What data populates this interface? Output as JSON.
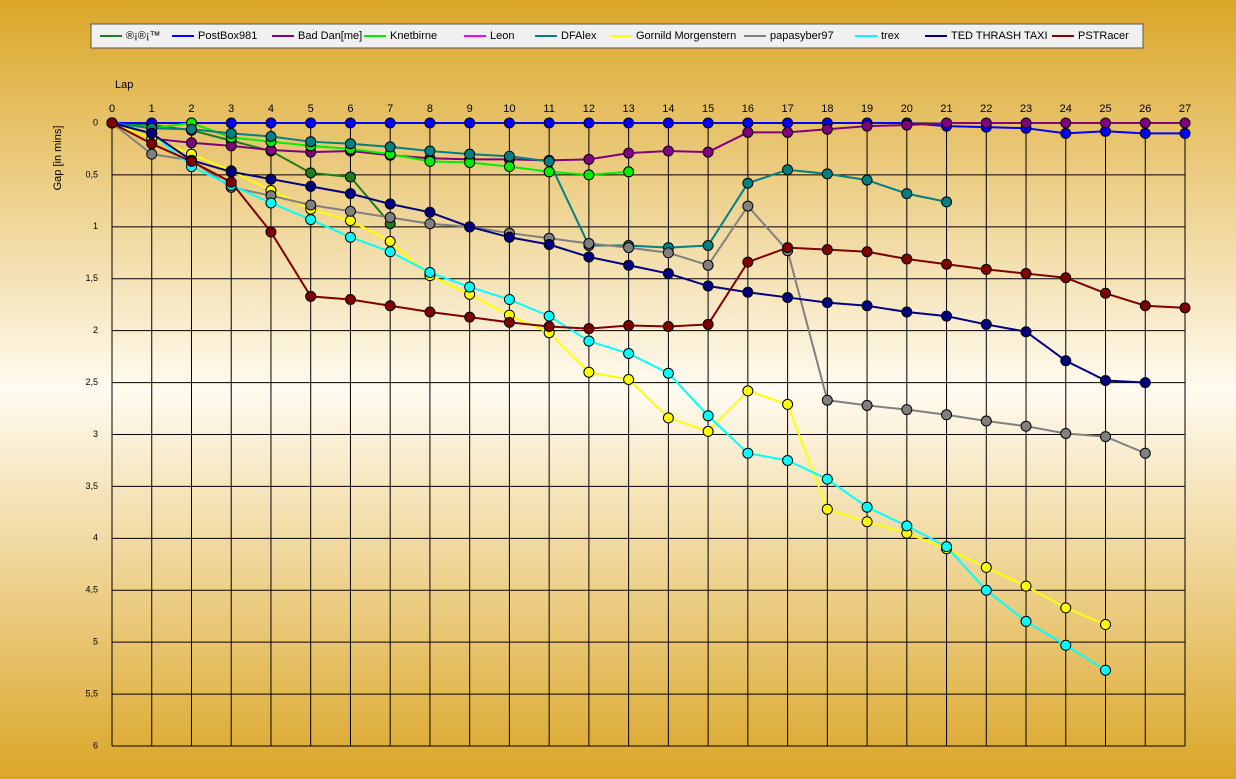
{
  "chart_data": {
    "type": "line",
    "x_label": "Lap",
    "y_label": "Gap [in mins]",
    "x": [
      0,
      1,
      2,
      3,
      4,
      5,
      6,
      7,
      8,
      9,
      10,
      11,
      12,
      13,
      14,
      15,
      16,
      17,
      18,
      19,
      20,
      21,
      22,
      23,
      24,
      25,
      26,
      27
    ],
    "xlim": [
      0,
      27
    ],
    "xticks": [
      0,
      1,
      2,
      3,
      4,
      5,
      6,
      7,
      8,
      9,
      10,
      11,
      12,
      13,
      14,
      15,
      16,
      17,
      18,
      19,
      20,
      21,
      22,
      23,
      24,
      25,
      26,
      27
    ],
    "ylim": [
      0,
      6
    ],
    "y_inverted": true,
    "yticks": [
      0,
      {
        "value": 0.5,
        "label": "0,5"
      },
      1,
      {
        "value": 1.5,
        "label": "1,5"
      },
      2,
      {
        "value": 2.5,
        "label": "2,5"
      },
      3,
      {
        "value": 3.5,
        "label": "3,5"
      },
      4,
      {
        "value": 4.5,
        "label": "4,5"
      },
      5,
      {
        "value": 5.5,
        "label": "5,5"
      },
      6
    ],
    "grid": true,
    "legend": "top",
    "series": [
      {
        "name": "®¡®¡™",
        "color": "#1e7b1e",
        "values": [
          0,
          0.02,
          0.07,
          0.17,
          0.27,
          0.48,
          0.52,
          0.97,
          null,
          null,
          null,
          null,
          null,
          null,
          null,
          null,
          null,
          null,
          null,
          null,
          null,
          null,
          null,
          null,
          null,
          null,
          null,
          null
        ]
      },
      {
        "name": "PostBox981",
        "color": "#0000ff",
        "values": [
          0,
          0,
          0,
          0,
          0,
          0,
          0,
          0,
          0,
          0,
          0,
          0,
          0,
          0,
          0,
          0,
          0,
          0,
          0,
          0,
          0,
          0.03,
          0.04,
          0.05,
          0.1,
          0.08,
          0.1,
          0.1
        ]
      },
      {
        "name": "Bad Dan[me]",
        "color": "#800080",
        "values": [
          0,
          0.15,
          0.19,
          0.22,
          0.26,
          0.28,
          0.27,
          0.31,
          0.34,
          0.35,
          0.35,
          0.36,
          0.35,
          0.29,
          0.27,
          0.28,
          0.09,
          0.09,
          0.06,
          0.03,
          0.02,
          0,
          0,
          0,
          0,
          0,
          0,
          0
        ]
      },
      {
        "name": "Knetbirne",
        "color": "#00ee00",
        "values": [
          0,
          0.05,
          0,
          0.14,
          0.18,
          0.22,
          0.25,
          0.3,
          0.37,
          0.38,
          0.42,
          0.47,
          0.5,
          0.47,
          null,
          null,
          null,
          null,
          null,
          null,
          null,
          null,
          null,
          null,
          null,
          null,
          null,
          null
        ]
      },
      {
        "name": "Leon",
        "color": "#ff00ff",
        "values": [
          0,
          null,
          null,
          null,
          null,
          null,
          null,
          null,
          null,
          null,
          null,
          null,
          null,
          null,
          null,
          null,
          null,
          null,
          null,
          null,
          null,
          null,
          null,
          null,
          null,
          null,
          null,
          null
        ]
      },
      {
        "name": "DFAlex",
        "color": "#008080",
        "values": [
          0,
          0.05,
          0.06,
          0.1,
          0.13,
          0.18,
          0.2,
          0.23,
          0.27,
          0.3,
          0.32,
          0.37,
          1.18,
          1.18,
          1.2,
          1.18,
          0.58,
          0.45,
          0.49,
          0.55,
          0.68,
          0.76,
          null,
          null,
          null,
          null,
          null,
          null
        ]
      },
      {
        "name": "Gornild Morgenstern",
        "color": "#ffff00",
        "values": [
          0,
          0.15,
          0.3,
          0.46,
          0.65,
          0.83,
          0.94,
          1.14,
          1.47,
          1.65,
          1.85,
          2.02,
          2.4,
          2.47,
          2.84,
          2.97,
          2.58,
          2.71,
          3.72,
          3.84,
          3.95,
          4.1,
          4.28,
          4.46,
          4.67,
          4.83,
          null,
          null
        ]
      },
      {
        "name": "papasyber97",
        "color": "#808080",
        "values": [
          0,
          0.3,
          0.36,
          0.62,
          0.7,
          0.79,
          0.85,
          0.91,
          0.97,
          1.0,
          1.06,
          1.11,
          1.16,
          1.2,
          1.25,
          1.37,
          0.8,
          1.23,
          2.67,
          2.72,
          2.76,
          2.81,
          2.87,
          2.92,
          2.99,
          3.02,
          3.18,
          null
        ]
      },
      {
        "name": "trex",
        "color": "#00ffff",
        "values": [
          0,
          0.1,
          0.42,
          0.6,
          0.77,
          0.93,
          1.1,
          1.24,
          1.44,
          1.58,
          1.7,
          1.86,
          2.1,
          2.22,
          2.41,
          2.82,
          3.18,
          3.25,
          3.43,
          3.7,
          3.88,
          4.08,
          4.5,
          4.8,
          5.03,
          5.27,
          null,
          null
        ]
      },
      {
        "name": "TED THRASH TAXI",
        "color": "#000080",
        "values": [
          0,
          0.1,
          0.36,
          0.47,
          0.54,
          0.61,
          0.68,
          0.78,
          0.86,
          1.0,
          1.1,
          1.17,
          1.29,
          1.37,
          1.45,
          1.57,
          1.63,
          1.68,
          1.73,
          1.76,
          1.82,
          1.86,
          1.94,
          2.01,
          2.29,
          2.48,
          2.5,
          null
        ]
      },
      {
        "name": "PSTRacer",
        "color": "#800000",
        "values": [
          0,
          0.2,
          0.37,
          0.57,
          1.05,
          1.67,
          1.7,
          1.76,
          1.82,
          1.87,
          1.92,
          1.96,
          1.98,
          1.95,
          1.96,
          1.94,
          1.34,
          1.2,
          1.22,
          1.24,
          1.31,
          1.36,
          1.41,
          1.45,
          1.49,
          1.64,
          1.76,
          1.78
        ]
      }
    ]
  }
}
